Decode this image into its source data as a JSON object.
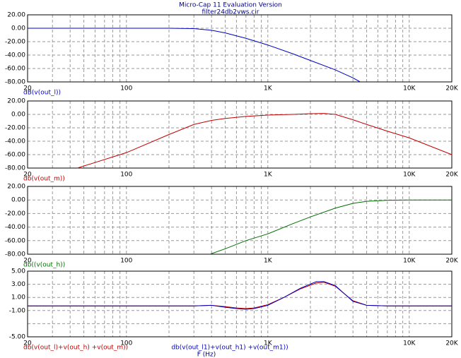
{
  "chart_data": [
    {
      "type": "line",
      "title": "Micro-Cap 11 Evaluation Version",
      "subtitle": "filter24db2vws.cir",
      "log_x": true,
      "grid": true,
      "xlim": [
        20,
        20000
      ],
      "xticks": [
        20,
        100,
        {
          "value": 1000,
          "label": "1K"
        },
        {
          "value": 10000,
          "label": "10K"
        },
        {
          "value": 20000,
          "label": "20K"
        }
      ],
      "xgrid": [
        30,
        40,
        50,
        60,
        70,
        80,
        90,
        200,
        300,
        400,
        500,
        600,
        700,
        800,
        900,
        2000,
        3000,
        4000,
        5000,
        6000,
        7000,
        8000,
        9000
      ],
      "ylim": [
        -80,
        20
      ],
      "yticks": [
        {
          "value": 20,
          "label": "20.00"
        },
        {
          "value": 0,
          "label": "0.00"
        },
        {
          "value": -20,
          "label": "-20.00"
        },
        {
          "value": -40,
          "label": "-40.00"
        },
        {
          "value": -60,
          "label": "-60.00"
        },
        {
          "value": -80,
          "label": "-80.00"
        }
      ],
      "series": [
        {
          "name": "dB(v(out_l))",
          "color": "#0000c0",
          "x": [
            20,
            50,
            100,
            200,
            300,
            400,
            500,
            700,
            1000,
            1500,
            2000,
            3000,
            4000,
            4500
          ],
          "values": [
            0,
            0,
            0,
            0,
            -0.5,
            -3,
            -7,
            -15,
            -25,
            -38,
            -48,
            -62,
            -74,
            -80
          ]
        }
      ]
    },
    {
      "type": "line",
      "log_x": true,
      "grid": true,
      "xlim": [
        20,
        20000
      ],
      "xticks": [
        20,
        100,
        {
          "value": 1000,
          "label": "1K"
        },
        {
          "value": 10000,
          "label": "10K"
        },
        {
          "value": 20000,
          "label": "20K"
        }
      ],
      "xgrid": [
        30,
        40,
        50,
        60,
        70,
        80,
        90,
        200,
        300,
        400,
        500,
        600,
        700,
        800,
        900,
        2000,
        3000,
        4000,
        5000,
        6000,
        7000,
        8000,
        9000
      ],
      "ylim": [
        -80,
        20
      ],
      "yticks": [
        {
          "value": 20,
          "label": "20.00"
        },
        {
          "value": 0,
          "label": "0.00"
        },
        {
          "value": -20,
          "label": "-20.00"
        },
        {
          "value": -40,
          "label": "-40.00"
        },
        {
          "value": -60,
          "label": "-60.00"
        },
        {
          "value": -80,
          "label": "-80.00"
        }
      ],
      "series": [
        {
          "name": "db(v(out_m))",
          "color": "#c00000",
          "x": [
            45,
            100,
            200,
            300,
            400,
            500,
            700,
            1000,
            1500,
            2000,
            2500,
            3000,
            4000,
            5000,
            7000,
            10000,
            20000
          ],
          "values": [
            -80,
            -57,
            -30,
            -15,
            -9,
            -6,
            -3,
            -1,
            0,
            1,
            1.5,
            0,
            -8,
            -15,
            -25,
            -35,
            -60
          ]
        }
      ]
    },
    {
      "type": "line",
      "log_x": true,
      "grid": true,
      "xlim": [
        20,
        20000
      ],
      "xticks": [
        20,
        100,
        {
          "value": 1000,
          "label": "1K"
        },
        {
          "value": 10000,
          "label": "10K"
        },
        {
          "value": 20000,
          "label": "20K"
        }
      ],
      "xgrid": [
        30,
        40,
        50,
        60,
        70,
        80,
        90,
        200,
        300,
        400,
        500,
        600,
        700,
        800,
        900,
        2000,
        3000,
        4000,
        5000,
        6000,
        7000,
        8000,
        9000
      ],
      "ylim": [
        -80,
        20
      ],
      "yticks": [
        {
          "value": 20,
          "label": "20.00"
        },
        {
          "value": 0,
          "label": "0.00"
        },
        {
          "value": -20,
          "label": "-20.00"
        },
        {
          "value": -40,
          "label": "-40.00"
        },
        {
          "value": -60,
          "label": "-60.00"
        },
        {
          "value": -80,
          "label": "-80.00"
        }
      ],
      "series": [
        {
          "name": "db((v(out_h))",
          "color": "#007000",
          "x": [
            390,
            500,
            700,
            1000,
            1500,
            2000,
            3000,
            4000,
            5000,
            7000,
            10000,
            20000
          ],
          "values": [
            -80,
            -72,
            -60,
            -50,
            -35,
            -25,
            -12,
            -5,
            -2,
            -0.5,
            0,
            0
          ]
        }
      ]
    },
    {
      "type": "line",
      "log_x": true,
      "grid": true,
      "x_label": "F (Hz)",
      "xlim": [
        20,
        20000
      ],
      "xticks": [
        20,
        100,
        {
          "value": 1000,
          "label": "1K"
        },
        {
          "value": 10000,
          "label": "10K"
        },
        {
          "value": 20000,
          "label": "20K"
        }
      ],
      "xgrid": [
        30,
        40,
        50,
        60,
        70,
        80,
        90,
        200,
        300,
        400,
        500,
        600,
        700,
        800,
        900,
        2000,
        3000,
        4000,
        5000,
        6000,
        7000,
        8000,
        9000
      ],
      "ylim": [
        -5,
        5
      ],
      "yticks": [
        {
          "value": 5,
          "label": "5.00"
        },
        {
          "value": 3,
          "label": "3.00"
        },
        {
          "value": 1,
          "label": "1.00"
        },
        {
          "value": -1,
          "label": "-1.00"
        },
        {
          "value": -5,
          "label": "-5.00"
        }
      ],
      "ygrid": [
        -3
      ],
      "series": [
        {
          "name": "db(v(out_l)+v(out_h) +v(out_m))",
          "color": "#c00000",
          "x": [
            20,
            100,
            300,
            400,
            500,
            600,
            700,
            800,
            1000,
            1300,
            1700,
            2200,
            2500,
            3000,
            3500,
            4000,
            5000,
            7000,
            20000
          ],
          "values": [
            -0.3,
            -0.3,
            -0.3,
            -0.2,
            -0.4,
            -0.6,
            -0.7,
            -0.6,
            -0.1,
            1.0,
            2.3,
            3.2,
            3.3,
            2.7,
            1.5,
            0.5,
            -0.2,
            -0.3,
            -0.3
          ]
        },
        {
          "name": "db(v(out_l1)+v(out_h1) +v(out_m1))",
          "color": "#0000c0",
          "x": [
            20,
            100,
            300,
            400,
            500,
            600,
            700,
            800,
            1000,
            1300,
            1700,
            2200,
            2500,
            3000,
            3500,
            4000,
            5000,
            7000,
            20000
          ],
          "values": [
            -0.3,
            -0.3,
            -0.3,
            -0.2,
            -0.5,
            -0.7,
            -0.8,
            -0.7,
            -0.2,
            1.0,
            2.4,
            3.4,
            3.4,
            2.8,
            1.5,
            0.4,
            -0.2,
            -0.3,
            -0.3
          ]
        }
      ]
    }
  ]
}
